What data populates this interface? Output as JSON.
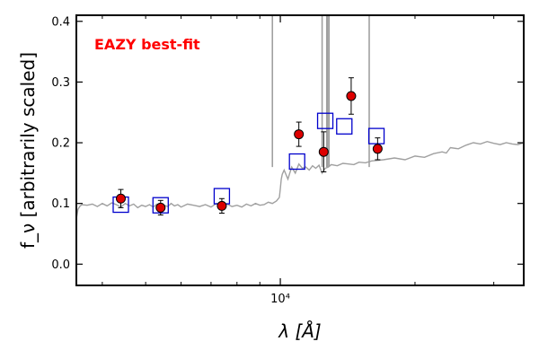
{
  "chart_data": {
    "type": "scatter",
    "annotation": "EAZY best-fit",
    "annotation_color": "#ff0000",
    "xlabel": "λ [Å]",
    "ylabel": "f_ν [arbitrarily scaled]",
    "xscale": "log",
    "xlim": [
      3500,
      35000
    ],
    "ylim": [
      -0.035,
      0.41
    ],
    "yticks": [
      0.0,
      0.1,
      0.2,
      0.3,
      0.4
    ],
    "ytick_labels": [
      "0.0",
      "0.1",
      "0.2",
      "0.3",
      "0.4"
    ],
    "xtick_major": [
      10000
    ],
    "xtick_major_labels": [
      "10⁴"
    ],
    "xtick_minor": [
      4000,
      5000,
      6000,
      7000,
      8000,
      9000,
      20000,
      30000
    ],
    "grid": false,
    "colors": {
      "template": "#a0a0a0",
      "observed_face": "#dd0000",
      "observed_edge": "#000000",
      "model_box": "#0000cc"
    },
    "series": [
      {
        "name": "",
        "kind": "observed",
        "x": [
          4400,
          5400,
          7400,
          11000,
          12500,
          14400,
          16500
        ],
        "y": [
          0.108,
          0.093,
          0.096,
          0.214,
          0.185,
          0.277,
          0.19
        ],
        "yerr": [
          0.015,
          0.012,
          0.012,
          0.02,
          0.033,
          0.03,
          0.018
        ]
      },
      {
        "name": "",
        "kind": "model",
        "x": [
          4400,
          5400,
          7400,
          10900,
          12600,
          13900,
          16400
        ],
        "y": [
          0.098,
          0.097,
          0.112,
          0.169,
          0.236,
          0.227,
          0.211
        ]
      },
      {
        "name": "",
        "kind": "template",
        "x": [
          3500,
          3530,
          3560,
          3600,
          3700,
          3800,
          3900,
          4000,
          4100,
          4200,
          4300,
          4400,
          4500,
          4600,
          4700,
          4800,
          4900,
          5000,
          5100,
          5200,
          5300,
          5400,
          5500,
          5600,
          5700,
          5800,
          5900,
          6000,
          6200,
          6400,
          6600,
          6800,
          7000,
          7200,
          7400,
          7600,
          7800,
          8000,
          8200,
          8400,
          8600,
          8800,
          9000,
          9200,
          9400,
          9600,
          9800,
          9950,
          10000,
          10050,
          10100,
          10200,
          10400,
          10600,
          10800,
          11000,
          11200,
          11400,
          11600,
          11800,
          12000,
          12200,
          12400,
          12600,
          12800,
          13000,
          13400,
          13800,
          14200,
          14600,
          15000,
          15500,
          16000,
          16500,
          17000,
          18000,
          19000,
          20000,
          21000,
          22000,
          23000,
          23500,
          24000,
          25000,
          26000,
          27000,
          28000,
          29000,
          30000,
          31000,
          32000,
          33000,
          34000,
          35000
        ],
        "y": [
          0.075,
          0.09,
          0.095,
          0.098,
          0.097,
          0.099,
          0.095,
          0.1,
          0.096,
          0.101,
          0.098,
          0.094,
          0.1,
          0.096,
          0.099,
          0.093,
          0.097,
          0.095,
          0.098,
          0.094,
          0.099,
          0.096,
          0.097,
          0.095,
          0.1,
          0.096,
          0.098,
          0.094,
          0.099,
          0.097,
          0.095,
          0.098,
          0.094,
          0.1,
          0.096,
          0.099,
          0.095,
          0.097,
          0.094,
          0.099,
          0.096,
          0.1,
          0.097,
          0.098,
          0.102,
          0.1,
          0.104,
          0.11,
          0.125,
          0.14,
          0.148,
          0.155,
          0.14,
          0.16,
          0.15,
          0.165,
          0.158,
          0.16,
          0.155,
          0.162,
          0.158,
          0.163,
          0.15,
          0.158,
          0.16,
          0.164,
          0.162,
          0.166,
          0.165,
          0.164,
          0.168,
          0.167,
          0.17,
          0.171,
          0.172,
          0.175,
          0.172,
          0.178,
          0.176,
          0.182,
          0.185,
          0.183,
          0.192,
          0.19,
          0.196,
          0.2,
          0.198,
          0.202,
          0.199,
          0.197,
          0.2,
          0.198,
          0.197,
          0.2
        ]
      }
    ],
    "template_spikes_x": [
      9600,
      12400,
      12700,
      12750,
      12850,
      15800
    ]
  }
}
